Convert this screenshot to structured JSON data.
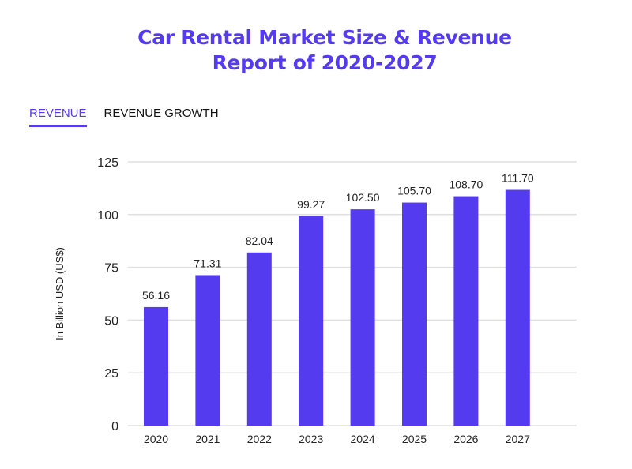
{
  "title_line1": "Car Rental Market Size & Revenue",
  "title_line2": "Report of 2020-2027",
  "tabs": [
    {
      "label": "REVENUE",
      "active": true
    },
    {
      "label": "REVENUE GROWTH",
      "active": false
    }
  ],
  "colors": {
    "accent": "#553bef",
    "bar": "#553bef",
    "grid": "#e0e0e0"
  },
  "chart_data": {
    "type": "bar",
    "categories": [
      "2020",
      "2021",
      "2022",
      "2023",
      "2024",
      "2025",
      "2026",
      "2027"
    ],
    "values": [
      56.16,
      71.31,
      82.04,
      99.27,
      102.5,
      105.7,
      108.7,
      111.7
    ],
    "data_labels": [
      "56.16",
      "71.31",
      "82.04",
      "99.27",
      "102.50",
      "105.70",
      "108.70",
      "111.70"
    ],
    "ylabel": "In Billion USD (US$)",
    "ylim": [
      0,
      125
    ],
    "yticks": [
      0,
      25,
      50,
      75,
      100,
      125
    ],
    "grid": true
  }
}
